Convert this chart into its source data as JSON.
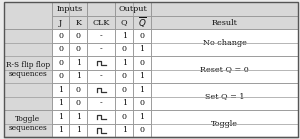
{
  "rows": [
    [
      "0",
      "0",
      "-",
      "1",
      "0"
    ],
    [
      "0",
      "0",
      "-",
      "0",
      "1"
    ],
    [
      "0",
      "1",
      "clk",
      "1",
      "0"
    ],
    [
      "0",
      "1",
      "-",
      "0",
      "1"
    ],
    [
      "1",
      "0",
      "clk",
      "0",
      "1"
    ],
    [
      "1",
      "0",
      "-",
      "1",
      "0"
    ],
    [
      "1",
      "1",
      "clk",
      "0",
      "1"
    ],
    [
      "1",
      "1",
      "clk",
      "1",
      "0"
    ]
  ],
  "result_groups": [
    [
      0,
      2,
      "No change"
    ],
    [
      2,
      4,
      "Reset Q = 0"
    ],
    [
      4,
      6,
      "Set Q = 1"
    ],
    [
      6,
      8,
      "Toggle"
    ]
  ],
  "left_groups": [
    [
      0,
      6,
      "R-S flip flop\nsequences"
    ],
    [
      6,
      8,
      "Toggle\nsequences"
    ]
  ],
  "bg_header": "#d8d8d8",
  "bg_body": "#ebebeb",
  "bg_cell": "#f5f5f2",
  "bg_white": "#ffffff",
  "border_color": "#999999",
  "text_color": "#111111",
  "font_size": 5.8
}
